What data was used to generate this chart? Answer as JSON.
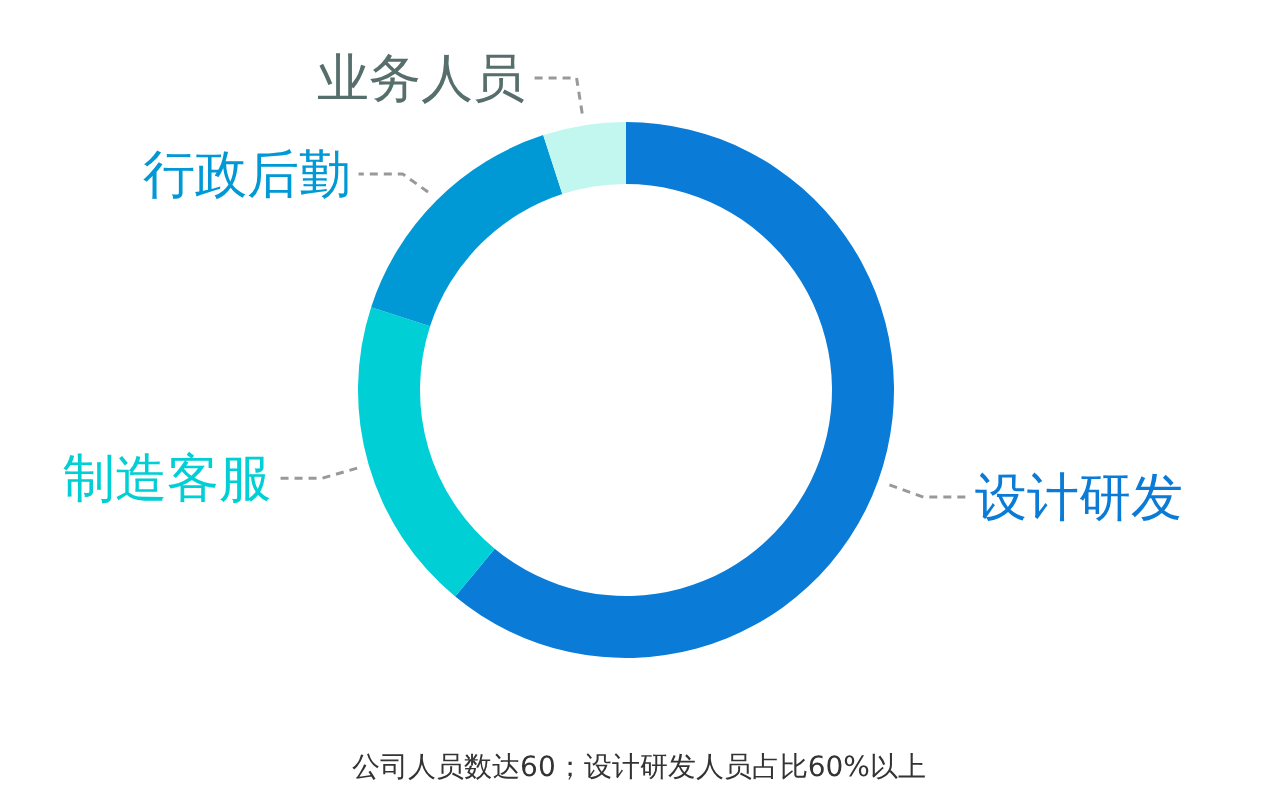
{
  "chart_data": {
    "type": "donut",
    "categories": [
      "设计研发",
      "制造客服",
      "行政后勤",
      "业务人员"
    ],
    "values": [
      61,
      19,
      15,
      5
    ],
    "colors": [
      "#0a7bd6",
      "#00cfd5",
      "#0099d6",
      "#c2f7f0"
    ],
    "annotations": [
      "公司人员数达60；设计研发人员占比60%以上"
    ]
  }
}
